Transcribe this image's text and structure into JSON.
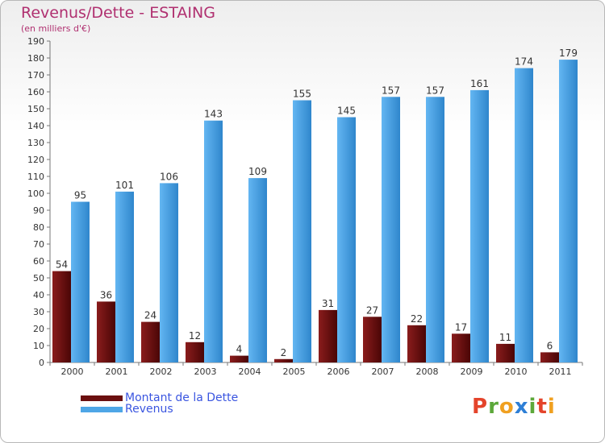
{
  "header": {
    "title": "Revenus/Dette - ESTAING",
    "subtitle": "(en milliers d'€)"
  },
  "colors": {
    "title": "#b03070",
    "dette": "#6b0f0f",
    "revenus": "#4ea6e6",
    "legend_text": "#3a55e0",
    "axis_text": "#333333"
  },
  "chart_data": {
    "type": "bar",
    "categories": [
      "2000",
      "2001",
      "2002",
      "2003",
      "2004",
      "2005",
      "2006",
      "2007",
      "2008",
      "2009",
      "2010",
      "2011"
    ],
    "series": [
      {
        "name": "Montant de la Dette",
        "values": [
          54,
          36,
          24,
          12,
          4,
          2,
          31,
          27,
          22,
          17,
          11,
          6
        ]
      },
      {
        "name": "Revenus",
        "values": [
          95,
          101,
          106,
          143,
          109,
          155,
          145,
          157,
          157,
          161,
          174,
          179
        ]
      }
    ],
    "ylim": [
      0,
      190
    ],
    "ytick_step": 10,
    "grid": false,
    "legend_position": "bottom-left"
  },
  "legend": {
    "items": [
      {
        "label": "Montant de la Dette",
        "color": "#6b0f0f"
      },
      {
        "label": "Revenus",
        "color": "#4ea6e6"
      }
    ]
  },
  "logo": {
    "letters": [
      "P",
      "r",
      "o",
      "x",
      "i",
      "t",
      "i"
    ],
    "colors": [
      "#e4442b",
      "#5ca83a",
      "#f0a020",
      "#2e7fd6",
      "#5ca83a",
      "#e4442b",
      "#f0a020"
    ]
  }
}
